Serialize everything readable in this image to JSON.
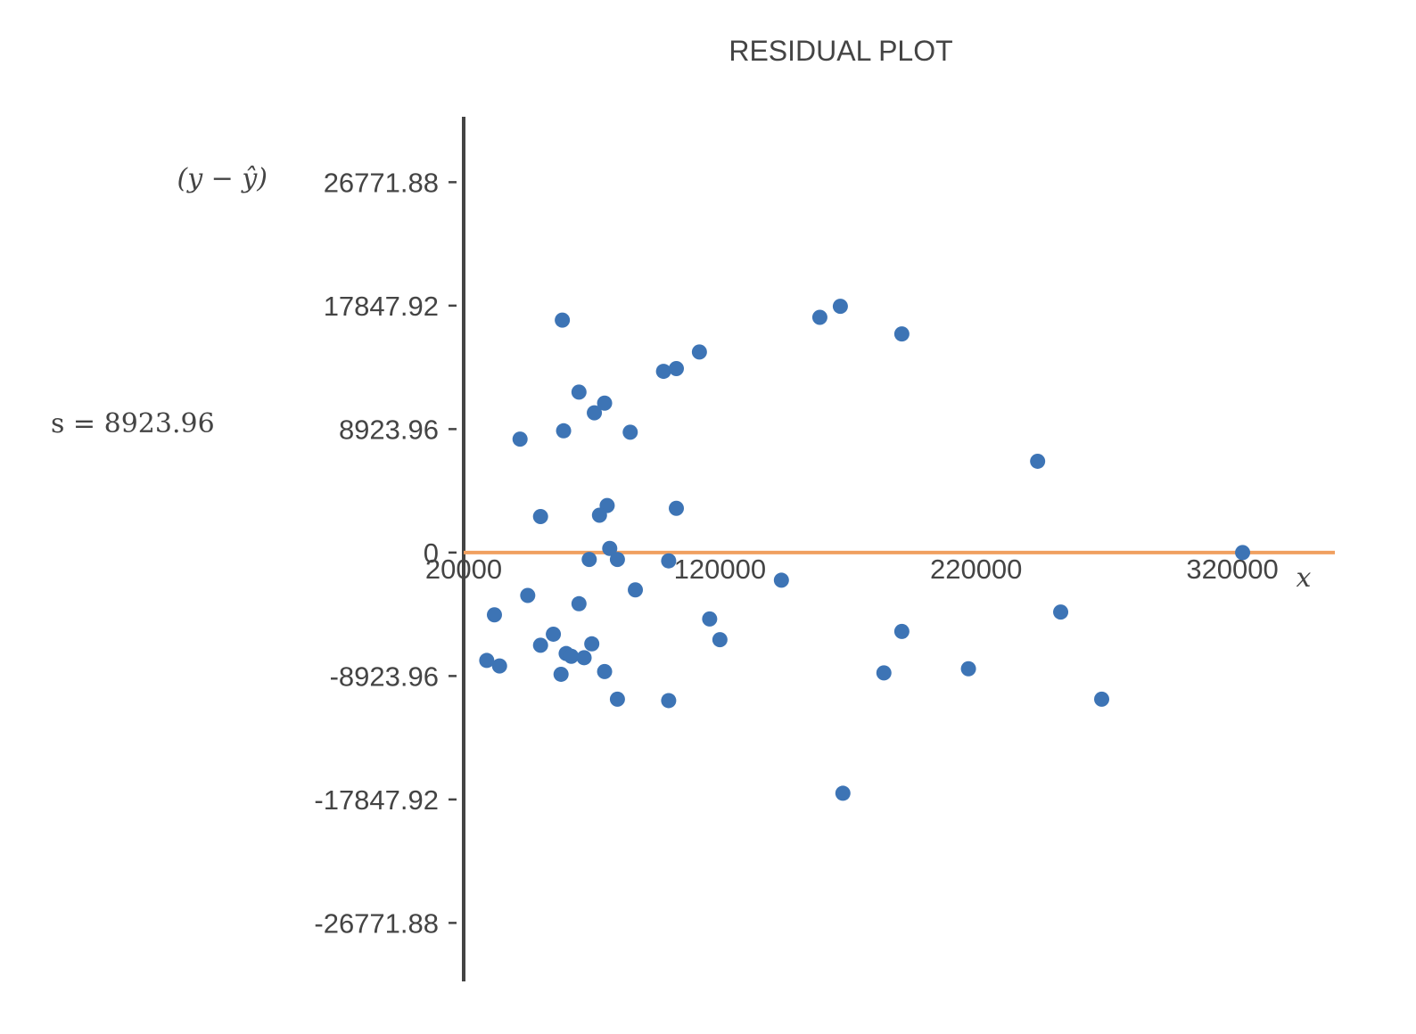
{
  "chart_data": {
    "type": "scatter",
    "title": "RESIDUAL PLOT",
    "xlabel": "x",
    "ylabel": "(y − ŷ)",
    "annotation": "s = 8923.96",
    "xlim": [
      20000,
      360000
    ],
    "ylim": [
      -31000,
      31500
    ],
    "x_ticks": [
      20000,
      120000,
      220000,
      320000
    ],
    "x_tick_labels": [
      "20000",
      "120000",
      "220000",
      "320000"
    ],
    "y_ticks": [
      26771.88,
      17847.92,
      8923.96,
      0,
      -8923.96,
      -17847.92,
      -26771.88
    ],
    "y_tick_labels": [
      "26771.88",
      "17847.92",
      "8923.96",
      "0",
      "-8923.96",
      "-17847.92",
      "-26771.88"
    ],
    "reference_line": {
      "y": 0,
      "color": "#f0a060"
    },
    "point_color": "#3d74b5",
    "axis_color": "#444444",
    "points": [
      {
        "x": 58500,
        "y": 16800
      },
      {
        "x": 159000,
        "y": 17000
      },
      {
        "x": 167000,
        "y": 17800
      },
      {
        "x": 191000,
        "y": 15800
      },
      {
        "x": 112000,
        "y": 14500
      },
      {
        "x": 98000,
        "y": 13100
      },
      {
        "x": 103000,
        "y": 13300
      },
      {
        "x": 65000,
        "y": 11600
      },
      {
        "x": 75000,
        "y": 10800
      },
      {
        "x": 71000,
        "y": 10100
      },
      {
        "x": 59000,
        "y": 8800
      },
      {
        "x": 85000,
        "y": 8700
      },
      {
        "x": 42000,
        "y": 8200
      },
      {
        "x": 244000,
        "y": 6600
      },
      {
        "x": 76000,
        "y": 3400
      },
      {
        "x": 103000,
        "y": 3200
      },
      {
        "x": 73000,
        "y": 2700
      },
      {
        "x": 50000,
        "y": 2600
      },
      {
        "x": 77000,
        "y": 300
      },
      {
        "x": 69000,
        "y": -500
      },
      {
        "x": 80000,
        "y": -500
      },
      {
        "x": 100000,
        "y": -600
      },
      {
        "x": 144000,
        "y": -2000
      },
      {
        "x": 87000,
        "y": -2700
      },
      {
        "x": 45000,
        "y": -3100
      },
      {
        "x": 65000,
        "y": -3700
      },
      {
        "x": 32000,
        "y": -4500
      },
      {
        "x": 253000,
        "y": -4300
      },
      {
        "x": 116000,
        "y": -4800
      },
      {
        "x": 191000,
        "y": -5700
      },
      {
        "x": 120000,
        "y": -6300
      },
      {
        "x": 55000,
        "y": -5900
      },
      {
        "x": 50000,
        "y": -6700
      },
      {
        "x": 70000,
        "y": -6600
      },
      {
        "x": 60000,
        "y": -7300
      },
      {
        "x": 62000,
        "y": -7500
      },
      {
        "x": 67000,
        "y": -7600
      },
      {
        "x": 29000,
        "y": -7800
      },
      {
        "x": 34000,
        "y": -8200
      },
      {
        "x": 75000,
        "y": -8600
      },
      {
        "x": 58000,
        "y": -8800
      },
      {
        "x": 184000,
        "y": -8700
      },
      {
        "x": 217000,
        "y": -8400
      },
      {
        "x": 80000,
        "y": -10600
      },
      {
        "x": 100000,
        "y": -10700
      },
      {
        "x": 269000,
        "y": -10600
      },
      {
        "x": 168000,
        "y": -17400
      },
      {
        "x": 324000,
        "y": 0
      }
    ]
  }
}
